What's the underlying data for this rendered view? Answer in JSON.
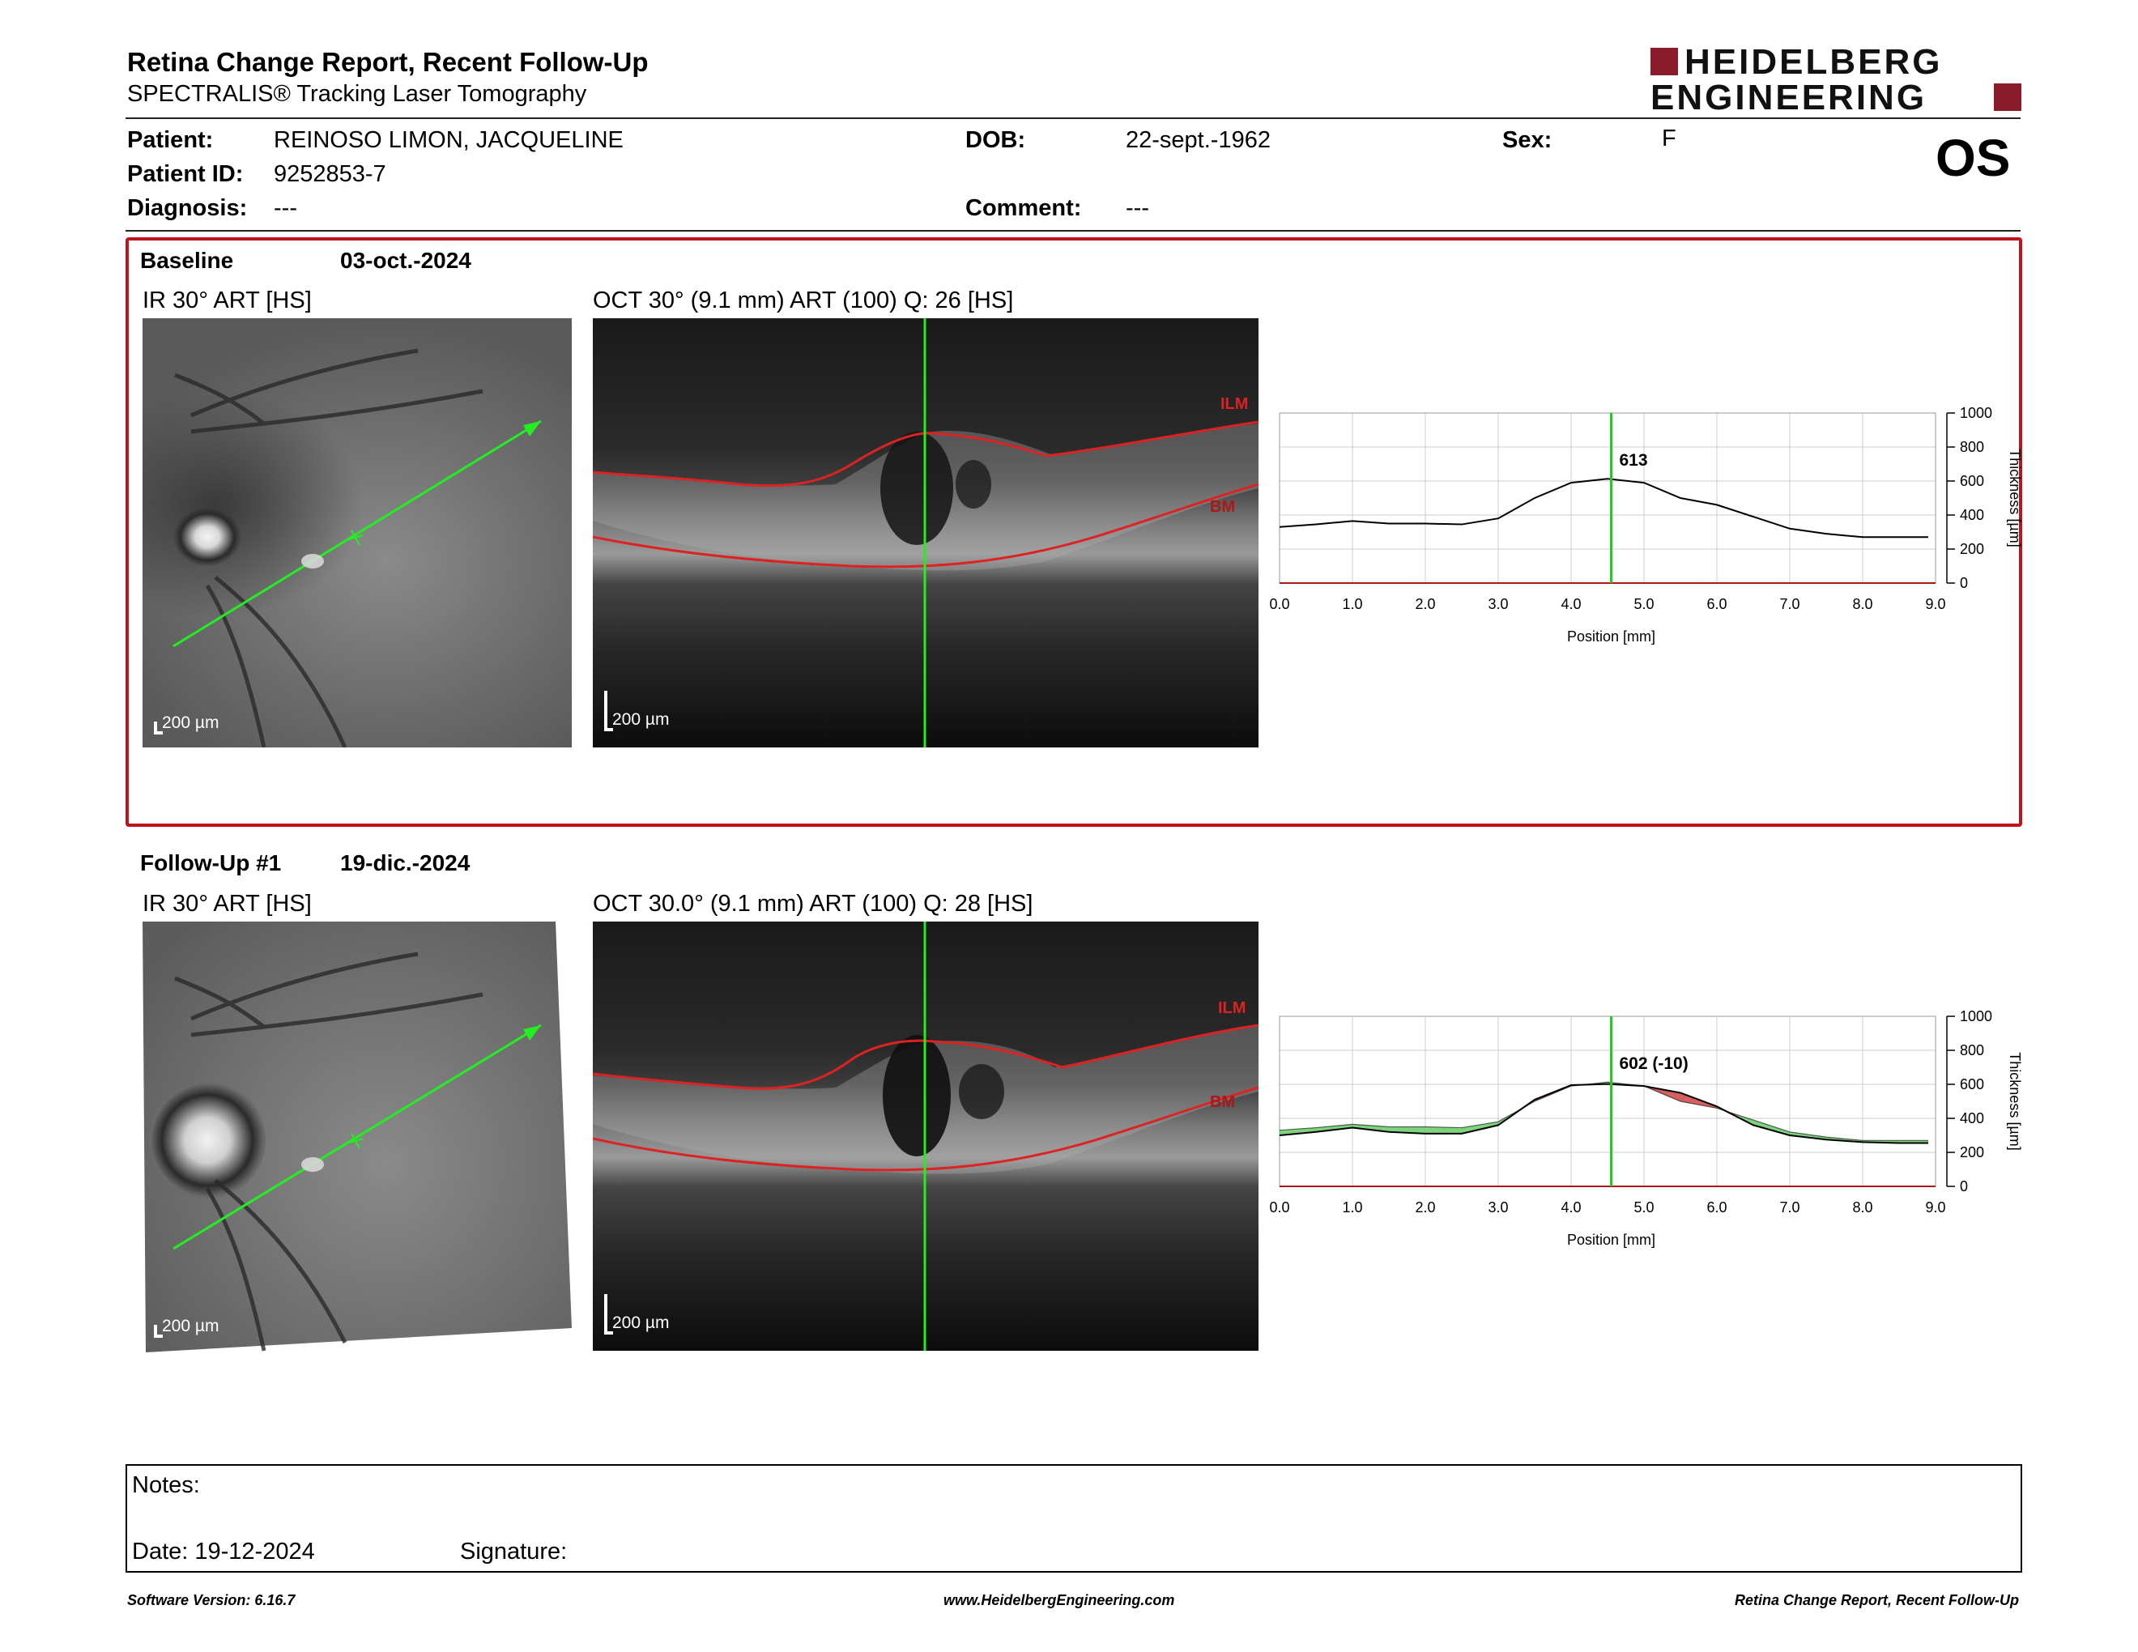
{
  "header": {
    "title": "Retina Change Report, Recent Follow-Up",
    "subtitle": "SPECTRALIS® Tracking Laser Tomography",
    "logo_line1": "HEIDELBERG",
    "logo_line2": "ENGINEERING",
    "eye": "OS"
  },
  "patient": {
    "patient_label": "Patient:",
    "patient_value": "REINOSO LIMON, JACQUELINE",
    "id_label": "Patient ID:",
    "id_value": "9252853-7",
    "diagnosis_label": "Diagnosis:",
    "diagnosis_value": "---",
    "dob_label": "DOB:",
    "dob_value": "22-sept.-1962",
    "comment_label": "Comment:",
    "comment_value": "---",
    "sex_label": "Sex:",
    "sex_value": "F"
  },
  "baseline": {
    "label": "Baseline",
    "date": "03-oct.-2024",
    "ir_title": "IR 30° ART [HS]",
    "oct_title": "OCT 30° (9.1 mm) ART (100) Q: 26 [HS]",
    "scale": "200 µm",
    "ilm": "ILM",
    "bm": "BM"
  },
  "followup": {
    "label": "Follow-Up #1",
    "date": "19-dic.-2024",
    "ir_title": "IR 30° ART [HS]",
    "oct_title": "OCT 30.0° (9.1 mm) ART (100) Q: 28 [HS]",
    "scale": "200 µm",
    "ilm": "ILM",
    "bm": "BM"
  },
  "chart_data": [
    {
      "type": "line",
      "xlabel": "Position [mm]",
      "ylabel": "Thickness [µm]",
      "xlim": [
        0,
        9.0
      ],
      "ylim": [
        0,
        1000
      ],
      "xticks": [
        "0.0",
        "1.0",
        "2.0",
        "3.0",
        "4.0",
        "5.0",
        "6.0",
        "7.0",
        "8.0",
        "9.0"
      ],
      "yticks": [
        "0",
        "200",
        "400",
        "600",
        "800",
        "1000"
      ],
      "cursor_x": 4.55,
      "cursor_label": "613",
      "series": [
        {
          "x": [
            0,
            0.5,
            1.0,
            1.5,
            2.0,
            2.5,
            3.0,
            3.5,
            4.0,
            4.5,
            5.0,
            5.5,
            6.0,
            6.5,
            7.0,
            7.5,
            8.0,
            8.5,
            8.9
          ],
          "values": [
            330,
            345,
            365,
            350,
            350,
            345,
            380,
            500,
            590,
            613,
            590,
            500,
            460,
            390,
            320,
            290,
            270,
            270,
            270
          ]
        }
      ],
      "color": "#000000",
      "cursor_color": "#22cc22"
    },
    {
      "type": "line",
      "xlabel": "Position [mm]",
      "ylabel": "Thickness [µm]",
      "xlim": [
        0,
        9.0
      ],
      "ylim": [
        0,
        1000
      ],
      "xticks": [
        "0.0",
        "1.0",
        "2.0",
        "3.0",
        "4.0",
        "5.0",
        "6.0",
        "7.0",
        "8.0",
        "9.0"
      ],
      "yticks": [
        "0",
        "200",
        "400",
        "600",
        "800",
        "1000"
      ],
      "cursor_x": 4.55,
      "cursor_label": "602 (-10)",
      "series": [
        {
          "x": [
            0,
            0.5,
            1.0,
            1.5,
            2.0,
            2.5,
            3.0,
            3.5,
            4.0,
            4.5,
            5.0,
            5.5,
            6.0,
            6.5,
            7.0,
            7.5,
            8.0,
            8.5,
            8.9
          ],
          "values": [
            300,
            320,
            345,
            320,
            310,
            310,
            360,
            510,
            595,
            602,
            590,
            550,
            470,
            360,
            300,
            275,
            260,
            255,
            255
          ]
        },
        {
          "x": [
            0,
            0.5,
            1.0,
            1.5,
            2.0,
            2.5,
            3.0,
            3.5,
            4.0,
            4.5,
            5.0,
            5.5,
            6.0,
            6.5,
            7.0,
            7.5,
            8.0,
            8.5,
            8.9
          ],
          "values": [
            330,
            345,
            365,
            350,
            350,
            345,
            380,
            500,
            590,
            613,
            590,
            500,
            460,
            390,
            320,
            290,
            270,
            270,
            270
          ]
        }
      ],
      "color": "#000000",
      "cursor_color": "#22cc22",
      "decrease_color": "#66cc66",
      "increase_color": "#cc4444"
    }
  ],
  "notes": {
    "notes_label": "Notes:",
    "date_label": "Date: 19-12-2024",
    "signature_label": "Signature:"
  },
  "footer": {
    "version": "Software Version: 6.16.7",
    "url": "www.HeidelbergEngineering.com",
    "report": "Retina Change Report, Recent Follow-Up"
  },
  "colors": {
    "accent": "#c0141c",
    "logo": "#8b1a2b"
  }
}
